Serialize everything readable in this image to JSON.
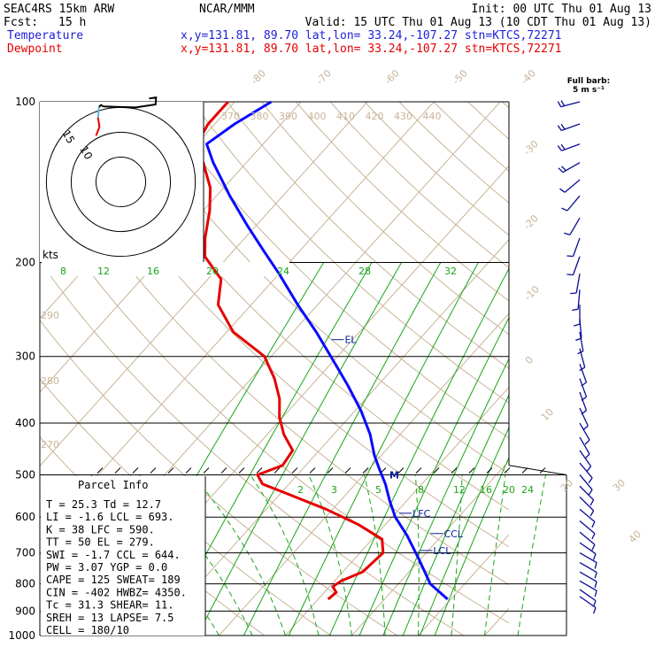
{
  "header": {
    "model": "SEAC4RS 15km ARW",
    "source": "NCAR/MMM",
    "init": "Init: 00 UTC Thu 01 Aug 13",
    "fcst_label": "Fcst:",
    "fcst_value": "15 h",
    "valid": "Valid: 15 UTC Thu 01 Aug 13 (10 CDT Thu 01 Aug 13)",
    "temp_label": "Temperature",
    "dew_label": "Dewpoint",
    "temp_loc": "x,y=131.81, 89.70  lat,lon= 33.24,-107.27  stn=KTCS,72271",
    "dew_loc": "x,y=131.81, 89.70  lat,lon= 33.24,-107.27  stn=KTCS,72271"
  },
  "colors": {
    "temperature": "#0a0aff",
    "dewpoint": "#e60000",
    "temp_label": "#1e1edc",
    "mixing_ratio": "#19a519",
    "adiabat": "#c8b496",
    "level_label": "#0a1e96",
    "hodo_low": "#64b4dc",
    "hodo_mid": "#e60000"
  },
  "barb_legend": {
    "title": "Full barb:",
    "value": "5 m s⁻¹"
  },
  "hodo_unit": "kts",
  "hodo_ring_labels": [
    "15",
    "10"
  ],
  "parcel_info": {
    "title": "Parcel Info",
    "rows": [
      "T  =   25.3 Td =  12.7",
      "LI =   -1.6 LCL =  693.",
      "K  =     38 LFC =  590.",
      "TT =     50 EL  =  279.",
      "SWI =  -1.7 CCL =  644.",
      "PW =   3.07 YGP =   0.0",
      "CAPE =  125 SWEAT=  189",
      "CIN =  -402 HWBZ= 4350.",
      "Tc =   31.3 SHEAR=  11.",
      "SREH =   13 LAPSE=   7.5",
      "CELL = 180/10"
    ]
  },
  "chart_data": {
    "type": "line",
    "title": "",
    "ylabel": "",
    "xlabel": "",
    "y_axis": "pressure (hPa), log scale",
    "ylim": [
      1000,
      100
    ],
    "pressure_ticks": [
      "100",
      "200",
      "300",
      "400",
      "500",
      "600",
      "700",
      "800",
      "900",
      "1000"
    ],
    "isotherm_labels": [
      "-80",
      "-70",
      "-60",
      "-50",
      "-40",
      "-30",
      "-20",
      "-10",
      "0",
      "10",
      "20",
      "30",
      "40"
    ],
    "theta_labels_upper": [
      "370",
      "380",
      "390",
      "400",
      "410",
      "420",
      "430",
      "440"
    ],
    "theta_labels_lower": [
      "290",
      "280",
      "270"
    ],
    "mixing_ratio_upper": [
      "8",
      "12",
      "16",
      "20",
      "24",
      "28",
      "32"
    ],
    "mixing_ratio_lower": [
      "2",
      "3",
      "5",
      "8",
      "12",
      "16",
      "20",
      "24"
    ],
    "levels": [
      {
        "name": "EL",
        "p": 279
      },
      {
        "name": "LFC",
        "p": 590
      },
      {
        "name": "CCL",
        "p": 644
      },
      {
        "name": "LCL",
        "p": 693
      }
    ],
    "freezing_level_marker": "M",
    "series": [
      {
        "name": "Temperature",
        "points": [
          [
            855,
            29.5
          ],
          [
            800,
            24.8
          ],
          [
            720,
            19.8
          ],
          [
            650,
            14.8
          ],
          [
            600,
            10.5
          ],
          [
            560,
            7.5
          ],
          [
            520,
            4.5
          ],
          [
            490,
            1.8
          ],
          [
            460,
            -1.0
          ],
          [
            420,
            -4.5
          ],
          [
            380,
            -9.0
          ],
          [
            340,
            -14.5
          ],
          [
            300,
            -21.0
          ],
          [
            270,
            -26.5
          ],
          [
            240,
            -33.0
          ],
          [
            210,
            -40.0
          ],
          [
            190,
            -45.5
          ],
          [
            170,
            -51.5
          ],
          [
            150,
            -58.0
          ],
          [
            130,
            -65.0
          ],
          [
            120,
            -68.5
          ],
          [
            110,
            -67.0
          ],
          [
            100,
            -64.5
          ]
        ]
      },
      {
        "name": "Dewpoint",
        "points": [
          [
            855,
            11.5
          ],
          [
            830,
            11.8
          ],
          [
            810,
            10.5
          ],
          [
            790,
            11.0
          ],
          [
            760,
            13.0
          ],
          [
            700,
            13.5
          ],
          [
            660,
            11.5
          ],
          [
            620,
            6.0
          ],
          [
            580,
            -1.0
          ],
          [
            540,
            -9.5
          ],
          [
            520,
            -14.0
          ],
          [
            500,
            -16.0
          ],
          [
            480,
            -13.5
          ],
          [
            450,
            -14.0
          ],
          [
            420,
            -17.5
          ],
          [
            390,
            -20.5
          ],
          [
            360,
            -23.0
          ],
          [
            330,
            -26.5
          ],
          [
            300,
            -31.0
          ],
          [
            270,
            -39.0
          ],
          [
            240,
            -45.0
          ],
          [
            215,
            -48.0
          ],
          [
            195,
            -53.5
          ],
          [
            180,
            -56.0
          ],
          [
            160,
            -59.0
          ],
          [
            145,
            -62.0
          ],
          [
            130,
            -66.5
          ],
          [
            120,
            -70.0
          ],
          [
            110,
            -71.0
          ],
          [
            100,
            -71.0
          ]
        ]
      }
    ],
    "hodograph": {
      "range_kts": [
        -16,
        16
      ],
      "rings_kts": [
        5,
        10,
        15
      ],
      "points": [
        [
          -5.0,
          9.3
        ],
        [
          -4.3,
          11.1
        ],
        [
          -4.6,
          13.0
        ],
        [
          -4.4,
          15.1
        ],
        [
          -4.0,
          15.5
        ],
        [
          -3.5,
          15.2
        ],
        [
          3.0,
          15.0
        ],
        [
          7.0,
          15.6
        ],
        [
          7.1,
          17.0
        ],
        [
          5.7,
          16.8
        ]
      ]
    },
    "wind_barbs": [
      {
        "p": 100,
        "spd": 10,
        "dir": 255
      },
      {
        "p": 110,
        "spd": 10,
        "dir": 250
      },
      {
        "p": 120,
        "spd": 10,
        "dir": 250
      },
      {
        "p": 130,
        "spd": 10,
        "dir": 240
      },
      {
        "p": 140,
        "spd": 5,
        "dir": 230
      },
      {
        "p": 150,
        "spd": 5,
        "dir": 220
      },
      {
        "p": 165,
        "spd": 5,
        "dir": 210
      },
      {
        "p": 180,
        "spd": 5,
        "dir": 200
      },
      {
        "p": 195,
        "spd": 5,
        "dir": 200
      },
      {
        "p": 210,
        "spd": 5,
        "dir": 190
      },
      {
        "p": 225,
        "spd": 5,
        "dir": 185
      },
      {
        "p": 240,
        "spd": 5,
        "dir": 180
      },
      {
        "p": 255,
        "spd": 5,
        "dir": 175
      },
      {
        "p": 270,
        "spd": 5,
        "dir": 170
      },
      {
        "p": 290,
        "spd": 5,
        "dir": 165
      },
      {
        "p": 310,
        "spd": 5,
        "dir": 160
      },
      {
        "p": 330,
        "spd": 5,
        "dir": 160
      },
      {
        "p": 350,
        "spd": 5,
        "dir": 160
      },
      {
        "p": 375,
        "spd": 5,
        "dir": 155
      },
      {
        "p": 400,
        "spd": 5,
        "dir": 150
      },
      {
        "p": 425,
        "spd": 5,
        "dir": 150
      },
      {
        "p": 450,
        "spd": 5,
        "dir": 145
      },
      {
        "p": 475,
        "spd": 5,
        "dir": 140
      },
      {
        "p": 500,
        "spd": 5,
        "dir": 140
      },
      {
        "p": 525,
        "spd": 5,
        "dir": 135
      },
      {
        "p": 550,
        "spd": 5,
        "dir": 135
      },
      {
        "p": 580,
        "spd": 5,
        "dir": 130
      },
      {
        "p": 610,
        "spd": 5,
        "dir": 130
      },
      {
        "p": 640,
        "spd": 5,
        "dir": 130
      },
      {
        "p": 670,
        "spd": 5,
        "dir": 125
      },
      {
        "p": 700,
        "spd": 5,
        "dir": 120
      },
      {
        "p": 730,
        "spd": 5,
        "dir": 120
      },
      {
        "p": 760,
        "spd": 5,
        "dir": 120
      },
      {
        "p": 790,
        "spd": 5,
        "dir": 120
      },
      {
        "p": 820,
        "spd": 5,
        "dir": 125
      },
      {
        "p": 845,
        "spd": 5,
        "dir": 125
      }
    ]
  }
}
